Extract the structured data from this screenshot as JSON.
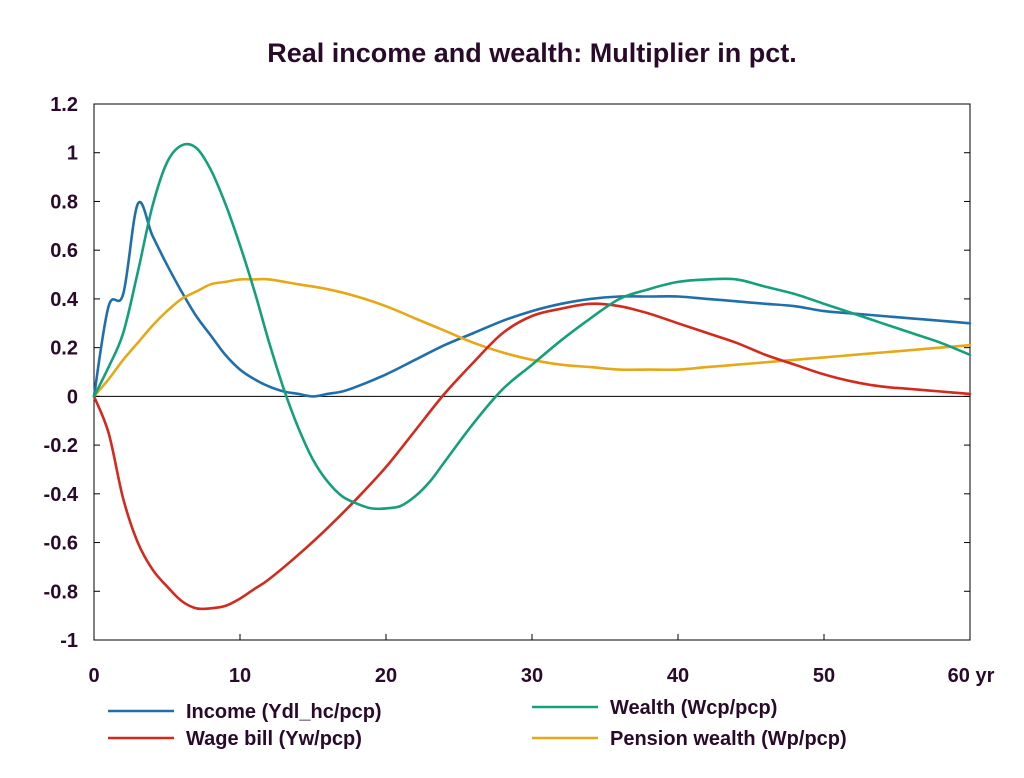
{
  "chart_data": {
    "type": "line",
    "title": "Real income and wealth: Multiplier in pct.",
    "xlim": [
      0,
      60
    ],
    "ylim": [
      -1,
      1.2
    ],
    "x_ticks": [
      0,
      10,
      20,
      30,
      40,
      50,
      60
    ],
    "x_tick_labels": [
      "0",
      "10",
      "20",
      "30",
      "40",
      "50",
      "60 yr"
    ],
    "y_ticks": [
      1.2,
      1,
      0.8,
      0.6,
      0.4,
      0.2,
      0,
      -0.2,
      -0.4,
      -0.6,
      -0.8,
      -1
    ],
    "y_tick_labels": [
      "1.2",
      "1",
      "0.8",
      "0.6",
      "0.4",
      "0.2",
      "0",
      "-0.2",
      "-0.4",
      "-0.6",
      "-0.8",
      "-1"
    ],
    "grid": false,
    "legend_position": "bottom",
    "series": [
      {
        "name": "Income (Ydl_hc/pcp)",
        "color": "#1f6fad",
        "x": [
          0,
          1,
          2,
          3,
          4,
          5,
          6,
          7,
          8,
          9,
          10,
          11,
          12,
          13,
          14,
          15,
          16,
          17,
          18,
          20,
          22,
          24,
          26,
          28,
          30,
          32,
          34,
          36,
          38,
          40,
          42,
          44,
          46,
          48,
          50,
          52,
          54,
          56,
          58,
          60
        ],
        "y": [
          0,
          0.37,
          0.42,
          0.79,
          0.66,
          0.54,
          0.43,
          0.33,
          0.25,
          0.17,
          0.11,
          0.07,
          0.04,
          0.02,
          0.01,
          0.0,
          0.01,
          0.02,
          0.04,
          0.09,
          0.15,
          0.21,
          0.26,
          0.31,
          0.35,
          0.38,
          0.4,
          0.41,
          0.41,
          0.41,
          0.4,
          0.39,
          0.38,
          0.37,
          0.35,
          0.34,
          0.33,
          0.32,
          0.31,
          0.3
        ]
      },
      {
        "name": "Wage bill (Yw/pcp)",
        "color": "#d42a1e",
        "x": [
          0,
          1,
          2,
          3,
          4,
          5,
          6,
          7,
          8,
          9,
          10,
          11,
          12,
          14,
          16,
          18,
          20,
          22,
          24,
          26,
          28,
          30,
          32,
          34,
          36,
          38,
          40,
          42,
          44,
          46,
          48,
          50,
          52,
          54,
          56,
          58,
          60
        ],
        "y": [
          0,
          -0.15,
          -0.42,
          -0.6,
          -0.71,
          -0.78,
          -0.84,
          -0.87,
          -0.87,
          -0.86,
          -0.83,
          -0.79,
          -0.75,
          -0.65,
          -0.54,
          -0.42,
          -0.29,
          -0.14,
          0.01,
          0.14,
          0.26,
          0.33,
          0.36,
          0.38,
          0.37,
          0.34,
          0.3,
          0.26,
          0.22,
          0.17,
          0.13,
          0.09,
          0.06,
          0.04,
          0.03,
          0.02,
          0.01
        ]
      },
      {
        "name": "Wealth (Wcp/pcp)",
        "color": "#14a07a",
        "x": [
          0,
          1,
          2,
          3,
          4,
          5,
          6,
          7,
          8,
          9,
          10,
          11,
          12,
          13,
          14,
          15,
          16,
          17,
          18,
          19,
          20,
          21,
          22,
          23,
          24,
          26,
          28,
          30,
          32,
          34,
          36,
          38,
          40,
          42,
          44,
          46,
          48,
          50,
          52,
          54,
          56,
          58,
          60
        ],
        "y": [
          0,
          0.12,
          0.26,
          0.51,
          0.78,
          0.96,
          1.03,
          1.02,
          0.93,
          0.79,
          0.62,
          0.43,
          0.22,
          0.03,
          -0.13,
          -0.26,
          -0.35,
          -0.41,
          -0.44,
          -0.46,
          -0.46,
          -0.45,
          -0.41,
          -0.35,
          -0.27,
          -0.11,
          0.03,
          0.13,
          0.23,
          0.32,
          0.4,
          0.44,
          0.47,
          0.48,
          0.48,
          0.45,
          0.42,
          0.38,
          0.34,
          0.3,
          0.26,
          0.22,
          0.17
        ]
      },
      {
        "name": "Pension wealth (Wp/pcp)",
        "color": "#e6a817",
        "x": [
          0,
          1,
          2,
          3,
          4,
          5,
          6,
          7,
          8,
          9,
          10,
          11,
          12,
          14,
          16,
          18,
          20,
          22,
          24,
          26,
          28,
          30,
          32,
          34,
          36,
          38,
          40,
          42,
          44,
          46,
          48,
          50,
          52,
          54,
          56,
          58,
          60
        ],
        "y": [
          0,
          0.07,
          0.15,
          0.22,
          0.29,
          0.35,
          0.4,
          0.43,
          0.46,
          0.47,
          0.48,
          0.48,
          0.48,
          0.46,
          0.44,
          0.41,
          0.37,
          0.32,
          0.27,
          0.22,
          0.18,
          0.15,
          0.13,
          0.12,
          0.11,
          0.11,
          0.11,
          0.12,
          0.13,
          0.14,
          0.15,
          0.16,
          0.17,
          0.18,
          0.19,
          0.2,
          0.21
        ]
      }
    ]
  }
}
